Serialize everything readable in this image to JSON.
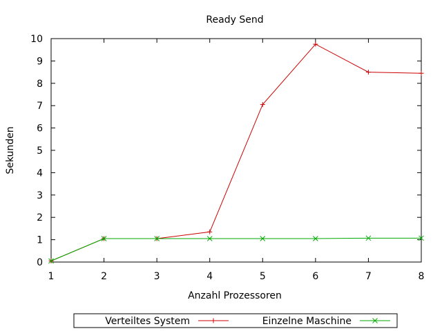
{
  "chart_data": {
    "type": "line",
    "title": "Ready Send",
    "xlabel": "Anzahl Prozessoren",
    "ylabel": "Sekunden",
    "x": [
      1,
      2,
      3,
      4,
      5,
      6,
      7,
      8
    ],
    "xlim": [
      1,
      8
    ],
    "ylim": [
      0,
      10
    ],
    "xticks": [
      "1",
      "2",
      "3",
      "4",
      "5",
      "6",
      "7",
      "8"
    ],
    "yticks": [
      "0",
      "1",
      "2",
      "3",
      "4",
      "5",
      "6",
      "7",
      "8",
      "9",
      "10"
    ],
    "grid": false,
    "legend_position": "bottom",
    "series": [
      {
        "name": "Verteiltes System",
        "color": "#cc0000",
        "marker": "plus",
        "values": [
          0.05,
          1.05,
          1.05,
          1.35,
          7.05,
          9.75,
          8.5,
          8.45
        ]
      },
      {
        "name": "Einzelne Maschine",
        "color": "#00aa00",
        "marker": "cross",
        "values": [
          0.05,
          1.05,
          1.05,
          1.05,
          1.05,
          1.05,
          1.07,
          1.07
        ]
      }
    ]
  }
}
